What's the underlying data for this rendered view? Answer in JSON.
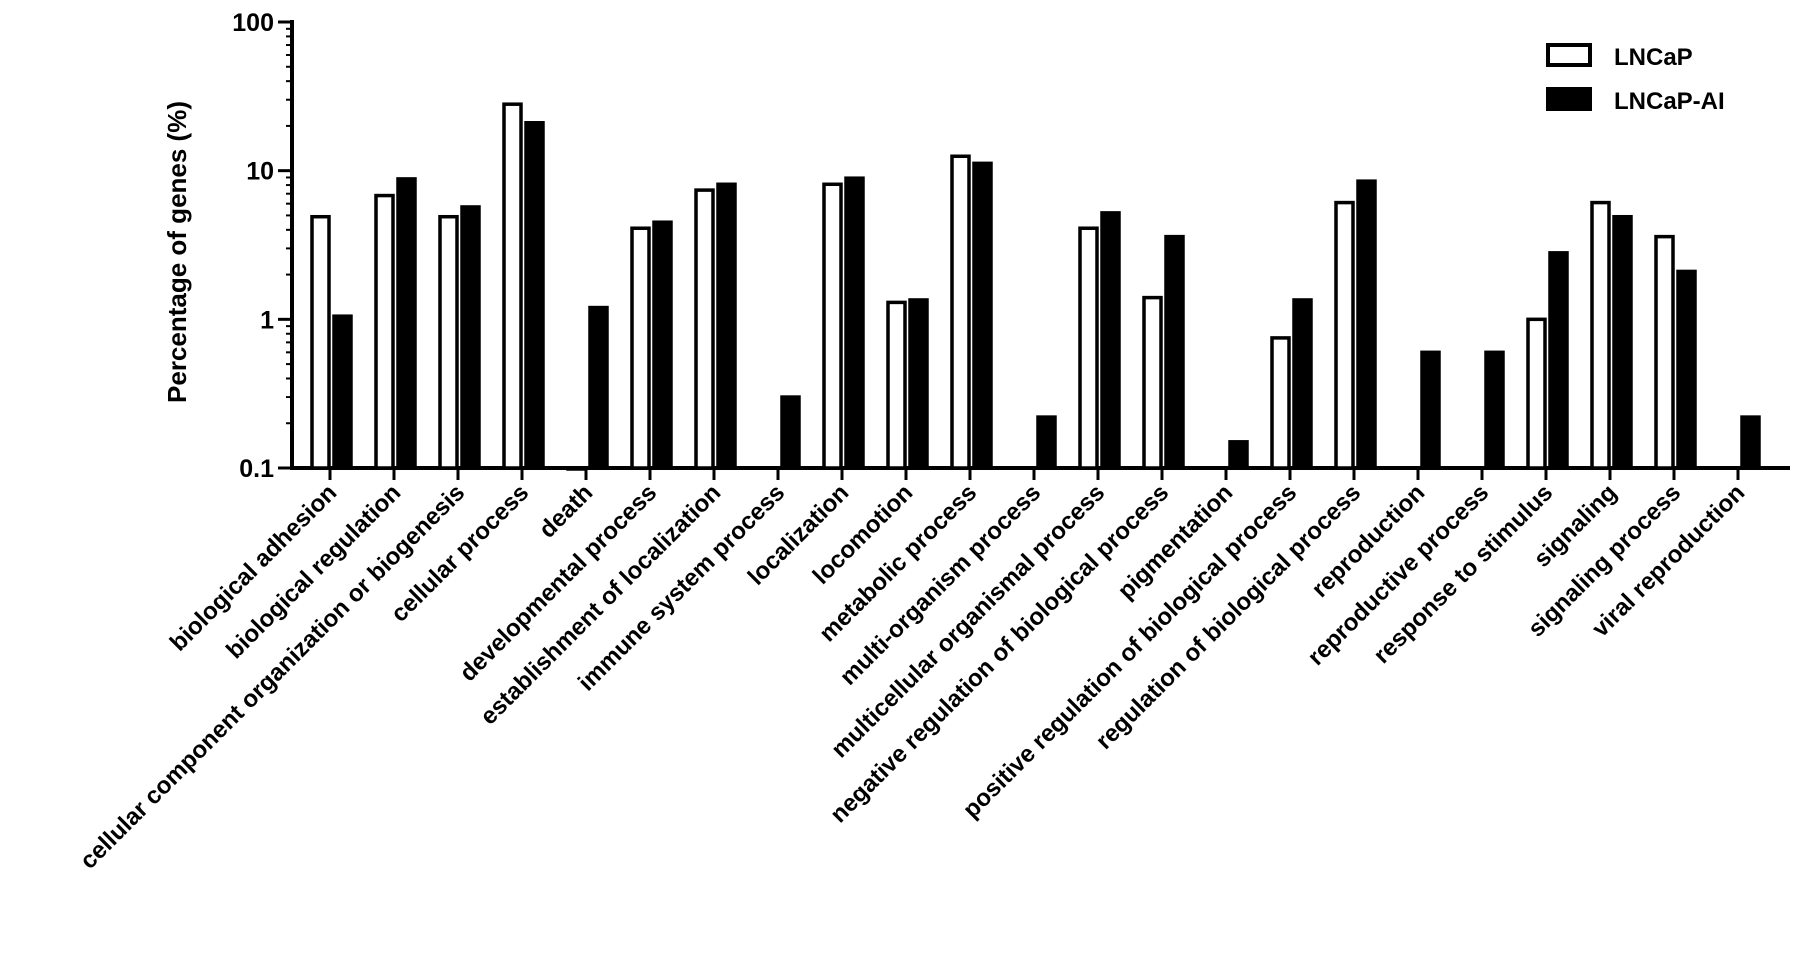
{
  "chart_data": {
    "type": "bar",
    "ylabel": "Percentage of genes (%)",
    "yscale": "log",
    "ylim": [
      0.1,
      100
    ],
    "yticks": [
      "100",
      "10",
      "1",
      "0.1"
    ],
    "legend_position": "top-right",
    "categories": [
      "biological adhesion",
      "biological regulation",
      "cellular component organization or biogenesis",
      "cellular process",
      "death",
      "developmental process",
      "establishment of localization",
      "immune system process",
      "localization",
      "locomotion",
      "metabolic process",
      "multi-organism process",
      "multicellular organismal process",
      "negative regulation of biological process",
      "pigmentation",
      "positive regulation of biological process",
      "regulation of biological process",
      "reproduction",
      "reproductive process",
      "response to stimulus",
      "signaling",
      "signaling process",
      "viral reproduction"
    ],
    "series": [
      {
        "name": "LNCaP",
        "fill": "#ffffff",
        "stroke": "#000000",
        "values": [
          4.9,
          6.8,
          4.9,
          28,
          0.1,
          4.1,
          7.4,
          null,
          8.1,
          1.3,
          12.5,
          null,
          4.1,
          1.4,
          null,
          0.75,
          6.1,
          null,
          null,
          1.0,
          6.1,
          3.6,
          null
        ]
      },
      {
        "name": "LNCaP-AI",
        "fill": "#000000",
        "stroke": "#000000",
        "values": [
          1.05,
          8.8,
          5.7,
          21,
          1.2,
          4.5,
          8.1,
          0.3,
          8.9,
          1.35,
          11.2,
          0.22,
          5.2,
          3.6,
          0.15,
          1.35,
          8.5,
          0.6,
          0.6,
          2.8,
          4.9,
          2.1,
          0.22
        ]
      }
    ]
  }
}
